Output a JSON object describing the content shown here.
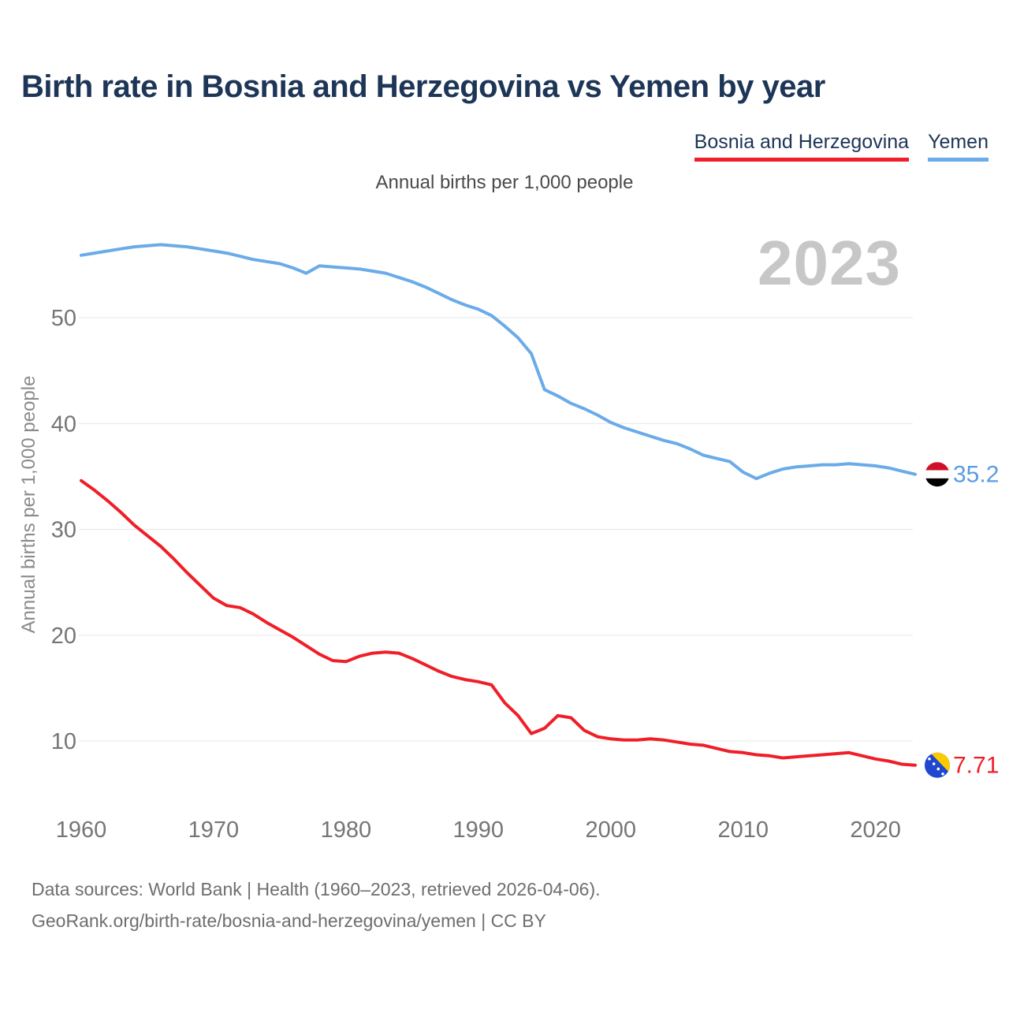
{
  "watermark": "2023",
  "footer": {
    "line1": "Data sources: World Bank | Health (1960–2023, retrieved 2026-04-06).",
    "line2": "GeoRank.org/birth-rate/bosnia-and-herzegovina/yemen | CC BY"
  },
  "chart_data": {
    "type": "line",
    "title": "Birth rate in Bosnia and Herzegovina vs Yemen by year",
    "subtitle": "Annual births per 1,000 people",
    "xlabel": "",
    "ylabel": "Annual births per 1,000 people",
    "grid": "horizontal",
    "legend_position": "top-right",
    "xticks": [
      1960,
      1970,
      1980,
      1990,
      2000,
      2010,
      2020
    ],
    "yticks": [
      10,
      20,
      30,
      40,
      50
    ],
    "ylim": [
      7,
      58
    ],
    "xlim": [
      1960,
      2023
    ],
    "years": [
      1960,
      1961,
      1962,
      1963,
      1964,
      1965,
      1966,
      1967,
      1968,
      1969,
      1970,
      1971,
      1972,
      1973,
      1974,
      1975,
      1976,
      1977,
      1978,
      1979,
      1980,
      1981,
      1982,
      1983,
      1984,
      1985,
      1986,
      1987,
      1988,
      1989,
      1990,
      1991,
      1992,
      1993,
      1994,
      1995,
      1996,
      1997,
      1998,
      1999,
      2000,
      2001,
      2002,
      2003,
      2004,
      2005,
      2006,
      2007,
      2008,
      2009,
      2010,
      2011,
      2012,
      2013,
      2014,
      2015,
      2016,
      2017,
      2018,
      2019,
      2020,
      2021,
      2022,
      2023
    ],
    "series": [
      {
        "name": "Bosnia and Herzegovina",
        "color": "#f01e28",
        "label_color": "#f01e28",
        "end_label": "7.71",
        "flag": "bosnia-and-herzegovina",
        "flag_colors": [
          "#1f47cf",
          "#fdca00",
          "#ffffff"
        ],
        "values": [
          34.6,
          33.7,
          32.7,
          31.6,
          30.4,
          29.4,
          28.4,
          27.2,
          25.9,
          24.7,
          23.5,
          22.8,
          22.6,
          22.0,
          21.2,
          20.5,
          19.8,
          19.0,
          18.2,
          17.6,
          17.5,
          18.0,
          18.3,
          18.4,
          18.3,
          17.8,
          17.2,
          16.6,
          16.1,
          15.8,
          15.6,
          15.3,
          13.6,
          12.4,
          10.7,
          11.2,
          12.4,
          12.2,
          11.0,
          10.4,
          10.2,
          10.1,
          10.1,
          10.2,
          10.1,
          9.9,
          9.7,
          9.6,
          9.3,
          9.0,
          8.9,
          8.7,
          8.6,
          8.4,
          8.5,
          8.6,
          8.7,
          8.8,
          8.9,
          8.6,
          8.3,
          8.1,
          7.8,
          7.71
        ]
      },
      {
        "name": "Yemen",
        "color": "#6aabe8",
        "label_color": "#5a9ce2",
        "end_label": "35.2",
        "flag": "yemen",
        "flag_colors": [
          "#ce1126",
          "#ffffff",
          "#000000"
        ],
        "values": [
          55.9,
          56.1,
          56.3,
          56.5,
          56.7,
          56.8,
          56.9,
          56.8,
          56.7,
          56.5,
          56.3,
          56.1,
          55.8,
          55.5,
          55.3,
          55.1,
          54.7,
          54.2,
          54.9,
          54.8,
          54.7,
          54.6,
          54.4,
          54.2,
          53.8,
          53.4,
          52.9,
          52.3,
          51.7,
          51.2,
          50.8,
          50.2,
          49.2,
          48.1,
          46.6,
          43.2,
          42.6,
          41.9,
          41.4,
          40.8,
          40.1,
          39.6,
          39.2,
          38.8,
          38.4,
          38.1,
          37.6,
          37.0,
          36.7,
          36.4,
          35.4,
          34.8,
          35.3,
          35.7,
          35.9,
          36.0,
          36.1,
          36.1,
          36.2,
          36.1,
          36.0,
          35.8,
          35.5,
          35.2
        ]
      }
    ]
  }
}
